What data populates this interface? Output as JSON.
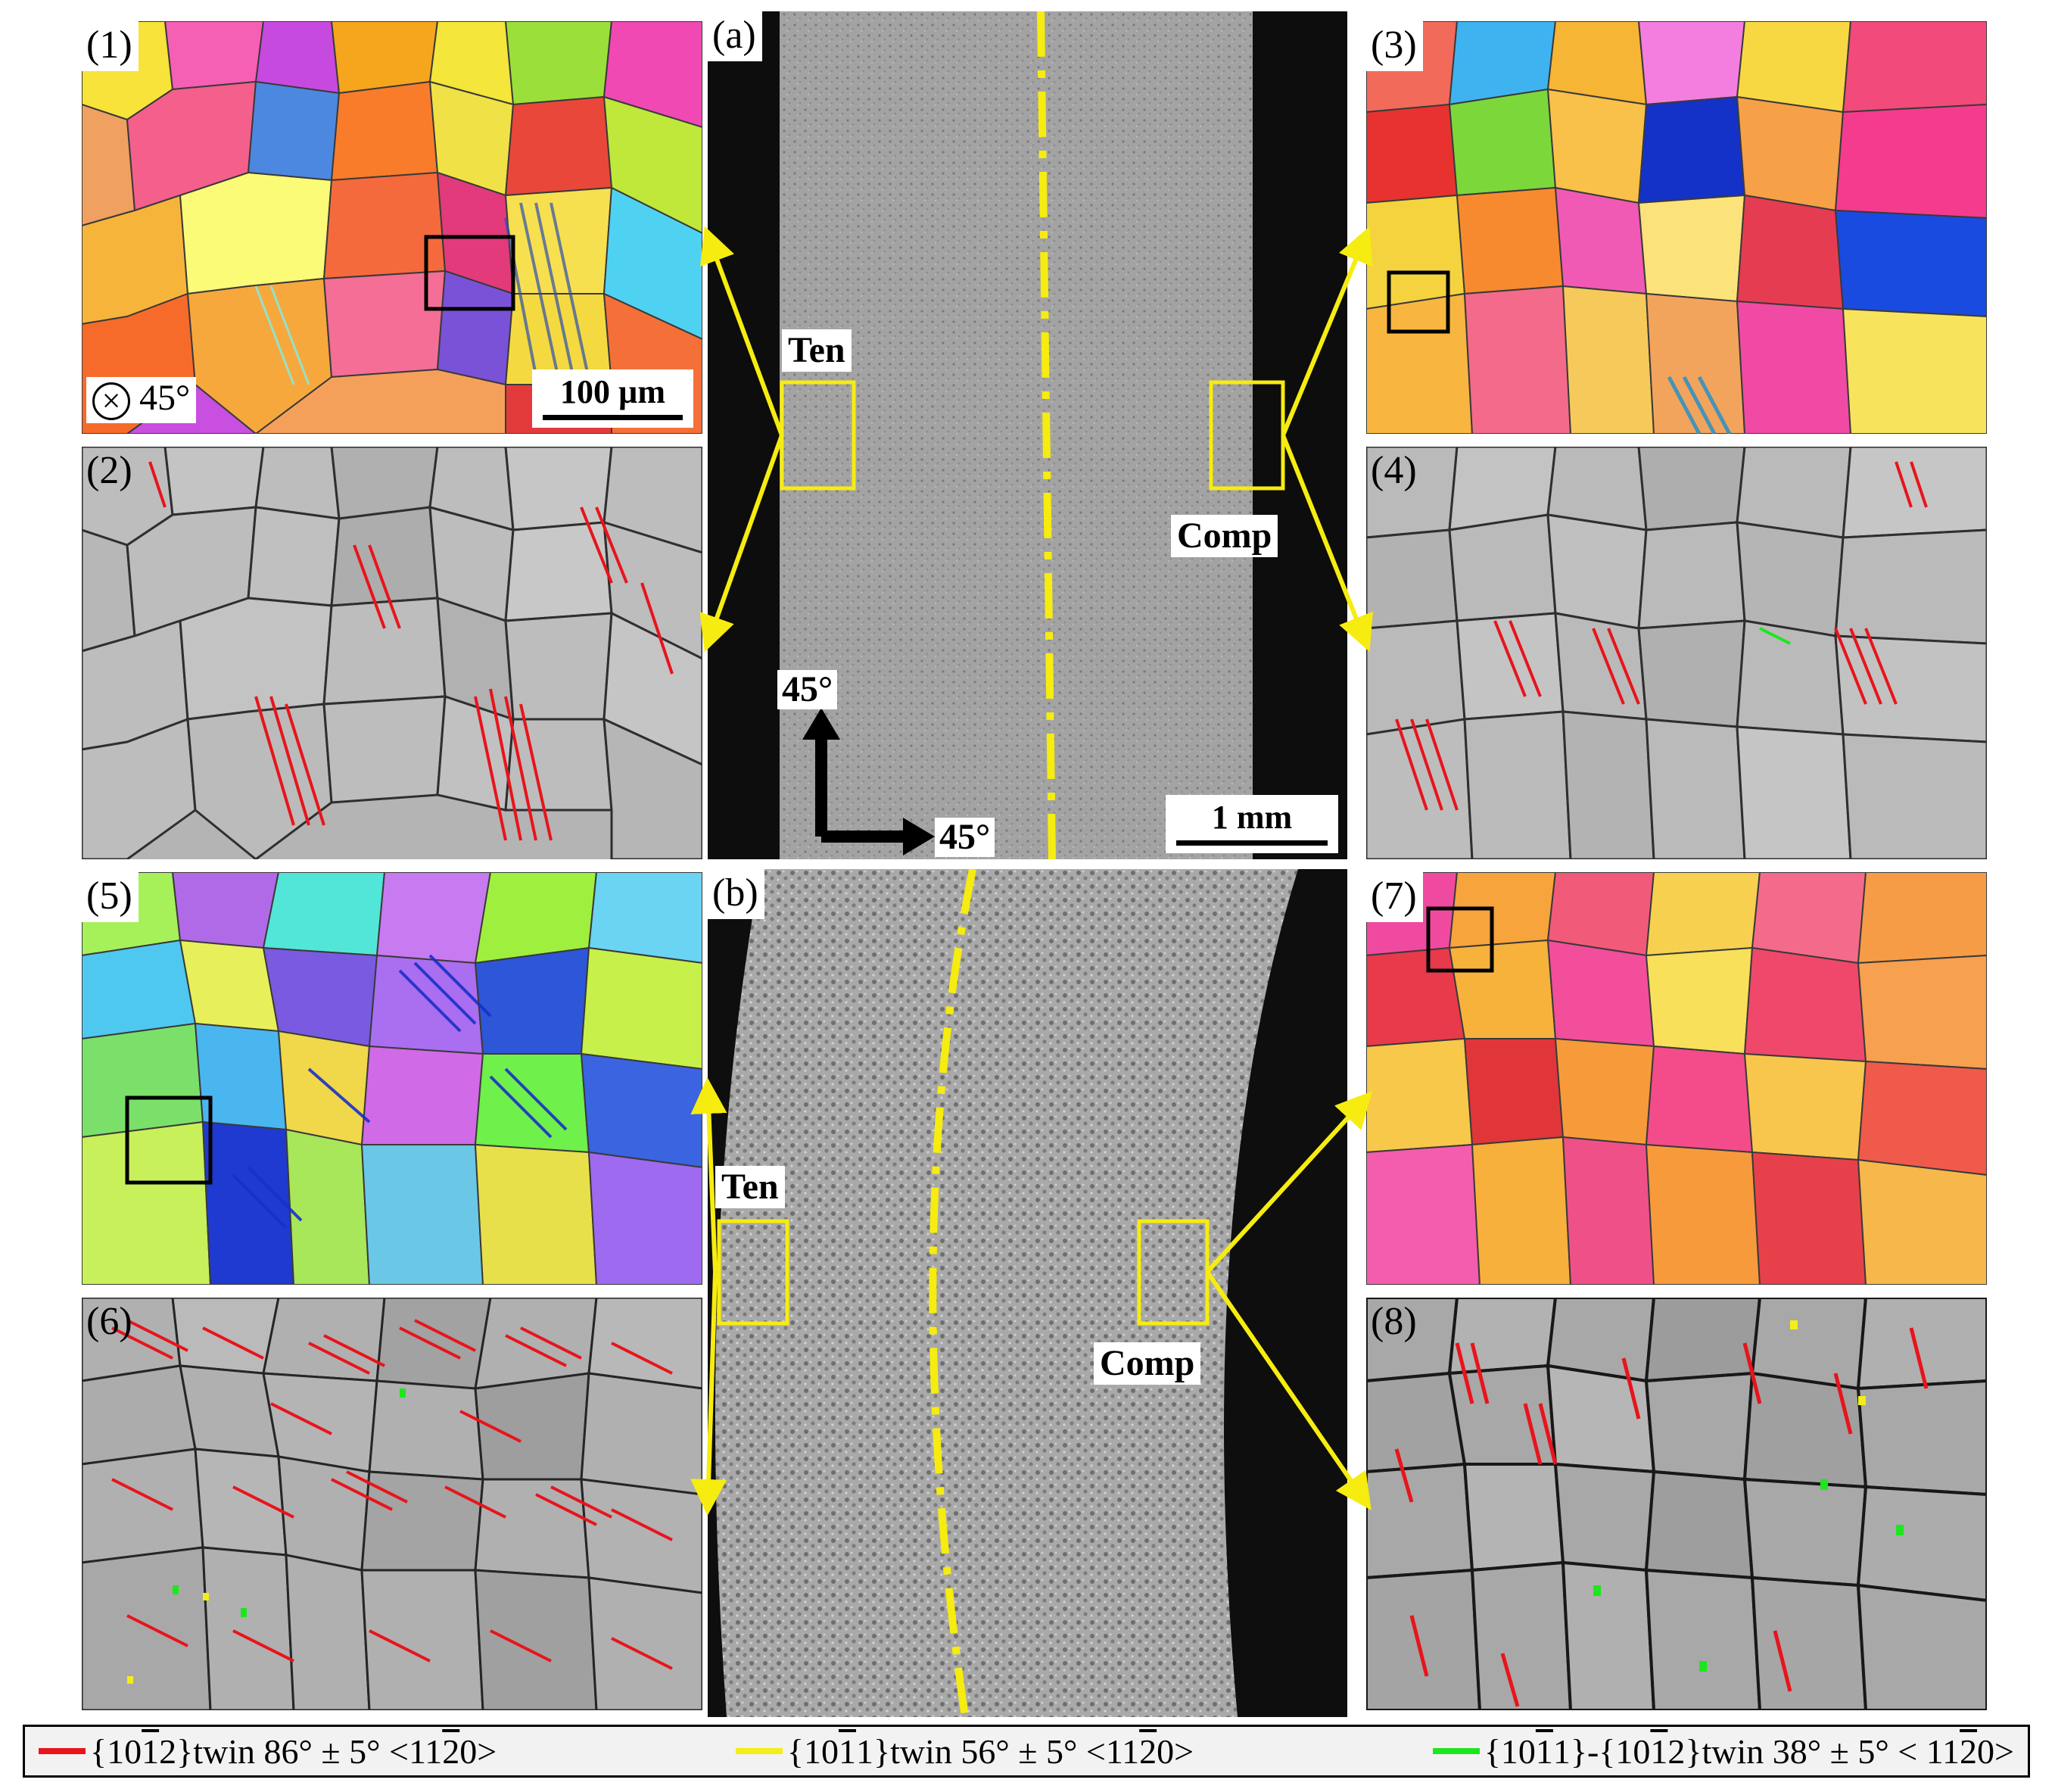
{
  "panels": {
    "p1": {
      "label": "(1)",
      "scale": "100 µm",
      "view": "45°"
    },
    "p2": {
      "label": "(2)"
    },
    "p3": {
      "label": "(3)"
    },
    "p4": {
      "label": "(4)"
    },
    "p5": {
      "label": "(5)"
    },
    "p6": {
      "label": "(6)"
    },
    "p7": {
      "label": "(7)"
    },
    "p8": {
      "label": "(8)"
    },
    "a": {
      "label": "(a)",
      "ten": "Ten",
      "comp": "Comp",
      "angle_up": "45°",
      "angle_right": "45°",
      "scale": "1 mm"
    },
    "b": {
      "label": "(b)",
      "ten": "Ten",
      "comp": "Comp"
    }
  },
  "legend": {
    "items": [
      {
        "color": "#e8141c",
        "plane_a": "{10",
        "plane_b": "1",
        "plane_c": "2}",
        "text": " twin 86° ± 5° <11",
        "dir": "2",
        "end": "0>"
      },
      {
        "color": "#f3ee17",
        "plane_a": "{10",
        "plane_b": "1",
        "plane_c": "1}",
        "text": " twin 56° ± 5° <11",
        "dir": "2",
        "end": "0>"
      },
      {
        "color": "#1ee61e",
        "plane_a": "{10",
        "plane_b": "1",
        "plane_c": "1}-{10",
        "plane_d": "1",
        "plane_e": "2}",
        "text": " twin 38° ± 5° < 11",
        "dir": "2",
        "end": "0>"
      }
    ]
  },
  "colors": {
    "yellow": "#f6ec10",
    "black": "#000000",
    "twin_red": "#e8141c",
    "twin_green": "#1ee61e",
    "twin_yellow": "#f3ee17"
  }
}
